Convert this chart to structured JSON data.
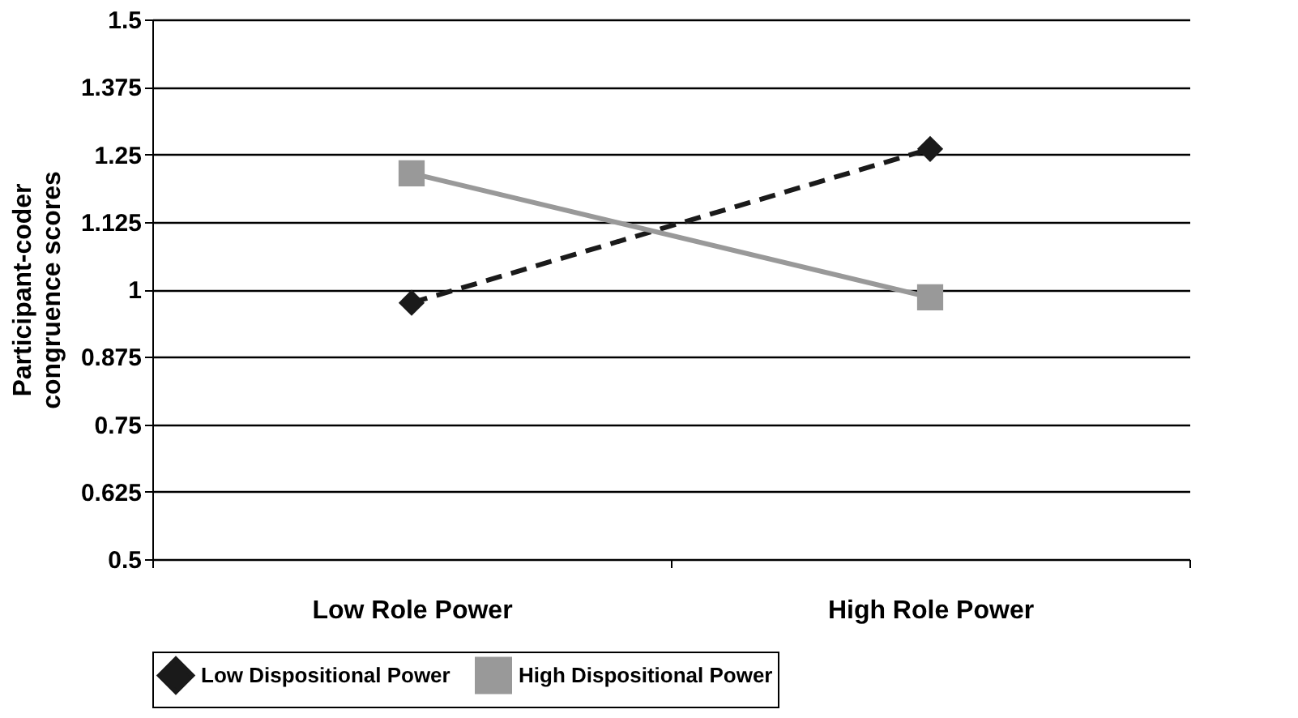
{
  "chart_data": {
    "type": "line",
    "ylabel": "Participant-coder\ncongruence scores",
    "categories": [
      "Low Role Power",
      "High Role Power"
    ],
    "series": [
      {
        "name": "Low Dispositional Power",
        "color": "#1a1a1a",
        "values": [
          0.975,
          1.26
        ],
        "marker": "diamond",
        "line_style": "dashed"
      },
      {
        "name": "High Dispositional Power",
        "color": "#999999",
        "values": [
          1.215,
          0.985
        ],
        "marker": "square",
        "line_style": "solid"
      }
    ],
    "ylim": [
      0.5,
      1.5
    ],
    "yticks": [
      0.5,
      0.625,
      0.75,
      0.875,
      1,
      1.125,
      1.25,
      1.375,
      1.5
    ],
    "grid": "y",
    "legend": "bottom"
  }
}
